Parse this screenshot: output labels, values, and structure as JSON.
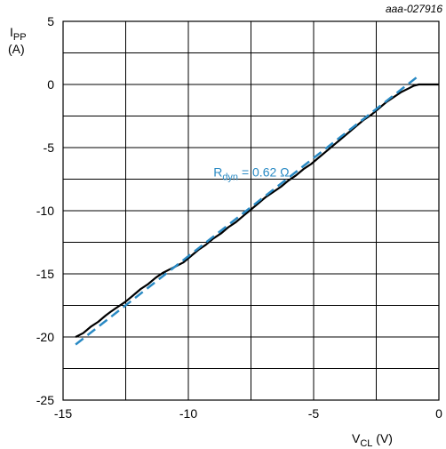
{
  "figure_code": "aaa-027916",
  "chart_data": {
    "type": "line",
    "xlabel": {
      "main": "V",
      "sub": "CL",
      "unit": " (V)"
    },
    "ylabel": {
      "main": "I",
      "sub": "PP",
      "unit": "(A)"
    },
    "xlim": [
      -15,
      0
    ],
    "ylim": [
      -25,
      5
    ],
    "xticks": [
      -15,
      -10,
      -5,
      0
    ],
    "yticks": [
      5,
      0,
      -5,
      -10,
      -15,
      -20,
      -25
    ],
    "xgrid": [
      -15,
      -12.5,
      -10,
      -7.5,
      -5,
      -2.5,
      0
    ],
    "ygrid": [
      5,
      2.5,
      0,
      -2.5,
      -5,
      -7.5,
      -10,
      -12.5,
      -15,
      -17.5,
      -20,
      -22.5,
      -25
    ],
    "grid": true,
    "colors": {
      "measured": "#000000",
      "fit": "#2a8ac4"
    },
    "annotation": {
      "main": "R",
      "sub": "dyn",
      "rest": " = 0.62 Ω",
      "x": -9.0,
      "y": -7.3
    },
    "series": [
      {
        "style": "solid",
        "x": [
          -14.5,
          -14.2,
          -13.9,
          -13.6,
          -13.3,
          -13.1,
          -12.8,
          -12.5,
          -12.2,
          -11.9,
          -11.6,
          -11.3,
          -11.0,
          -10.7,
          -10.5,
          -10.2,
          -9.9,
          -9.6,
          -9.3,
          -9.0,
          -8.7,
          -8.4,
          -8.1,
          -7.8,
          -7.5,
          -7.2,
          -6.9,
          -6.6,
          -6.3,
          -6.0,
          -5.7,
          -5.4,
          -5.1,
          -4.8,
          -4.5,
          -4.2,
          -3.9,
          -3.6,
          -3.3,
          -3.0,
          -2.7,
          -2.4,
          -2.1,
          -1.8,
          -1.5,
          -1.2,
          -1.0,
          -0.8,
          -0.4,
          0.0
        ],
        "y": [
          -20.0,
          -19.7,
          -19.2,
          -18.8,
          -18.3,
          -18.0,
          -17.6,
          -17.2,
          -16.7,
          -16.2,
          -15.8,
          -15.3,
          -14.9,
          -14.6,
          -14.4,
          -14.1,
          -13.6,
          -13.1,
          -12.7,
          -12.2,
          -11.8,
          -11.3,
          -10.9,
          -10.4,
          -9.9,
          -9.4,
          -8.9,
          -8.5,
          -8.1,
          -7.6,
          -7.2,
          -6.7,
          -6.3,
          -5.8,
          -5.3,
          -4.8,
          -4.3,
          -3.8,
          -3.3,
          -2.8,
          -2.4,
          -1.9,
          -1.4,
          -1.0,
          -0.6,
          -0.3,
          -0.1,
          0.0,
          0.0,
          0.0
        ]
      },
      {
        "style": "dashed",
        "x": [
          -14.5,
          -0.8
        ],
        "y": [
          -20.6,
          0.7
        ]
      }
    ]
  }
}
